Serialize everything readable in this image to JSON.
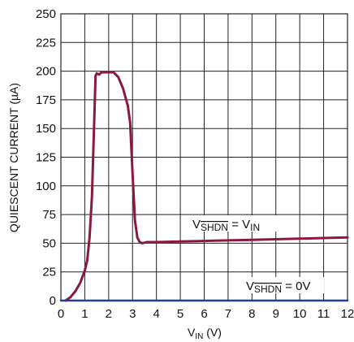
{
  "chart_data": {
    "type": "line",
    "xlabel_main": "V",
    "xlabel_sub": "IN",
    "xlabel_unit": " (V)",
    "ylabel": "QUIESCENT CURRENT (µA)",
    "xlim": [
      0,
      12
    ],
    "ylim": [
      0,
      250
    ],
    "x_ticks": [
      "0",
      "1",
      "2",
      "3",
      "4",
      "5",
      "6",
      "7",
      "8",
      "9",
      "10",
      "11",
      "12"
    ],
    "y_ticks": [
      "0",
      "25",
      "50",
      "75",
      "100",
      "125",
      "150",
      "175",
      "200",
      "225",
      "250"
    ],
    "grid": true,
    "series": [
      {
        "label_main": "V",
        "label_over": "SHDN",
        "label_eq": " = V",
        "label_sub": "IN",
        "color": "#8b1a3a",
        "x": [
          0.2,
          0.4,
          0.6,
          0.8,
          1.0,
          1.1,
          1.2,
          1.3,
          1.4,
          1.45,
          1.5,
          1.6,
          1.7,
          1.8,
          2.0,
          2.2,
          2.4,
          2.6,
          2.8,
          2.9,
          3.0,
          3.1,
          3.2,
          3.3,
          3.4,
          3.6,
          4.0,
          5.0,
          6.0,
          7.0,
          8.0,
          9.0,
          10.0,
          11.0,
          12.0
        ],
        "y": [
          0,
          3,
          8,
          15,
          26,
          35,
          55,
          90,
          160,
          196,
          198,
          197,
          199,
          199,
          199,
          199,
          195,
          185,
          170,
          155,
          110,
          70,
          55,
          51,
          50,
          51,
          51,
          51.5,
          52,
          52.5,
          53,
          53.5,
          54,
          54.5,
          55
        ]
      },
      {
        "label_main": "V",
        "label_over": "SHDN",
        "label_eq": " = 0V",
        "label_sub": "",
        "color": "#1f3f8f",
        "x": [
          0,
          12
        ],
        "y": [
          0,
          0
        ]
      }
    ]
  }
}
